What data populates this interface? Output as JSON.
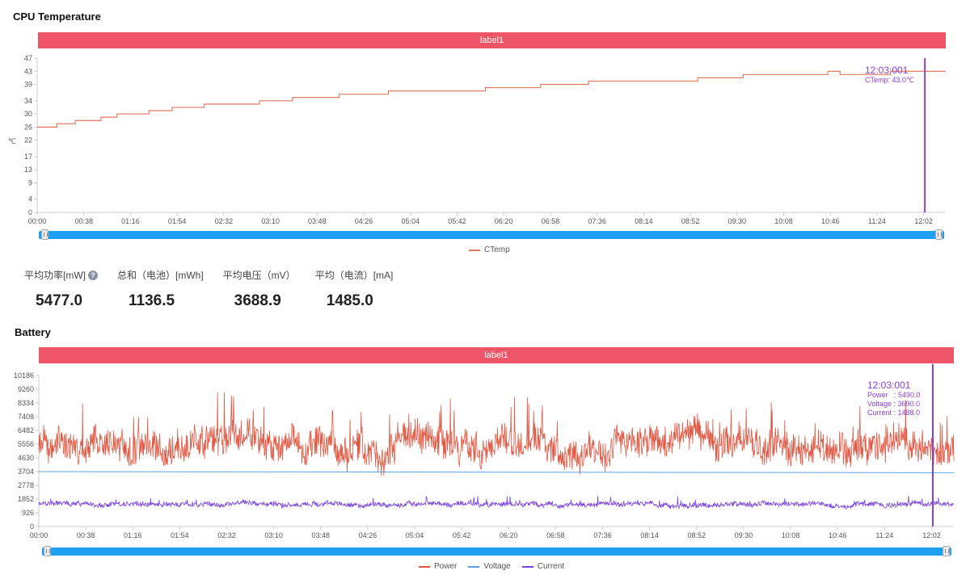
{
  "cpu_panel": {
    "title": "CPU Temperature",
    "banner": "label1",
    "tooltip": {
      "time": "12:03:001",
      "line1": "CTemp: 43.0℃"
    }
  },
  "stats": [
    {
      "label": "平均功率[mW]",
      "value": "5477.0",
      "help": "?"
    },
    {
      "label": "总和（电池）[mWh]",
      "value": "1136.5"
    },
    {
      "label": "平均电压（mV）",
      "value": "3688.9"
    },
    {
      "label": "平均（电流）[mA]",
      "value": "1485.0"
    }
  ],
  "battery_panel": {
    "title": "Battery",
    "banner": "label1",
    "tooltip": {
      "time": "12:03:001",
      "line1": "Power   : 5490.0",
      "line2": "Voltage : 3690.0",
      "line3": "Current : 1488.0"
    }
  },
  "colors": {
    "power": "#e05a45",
    "voltage": "#5aa0e0",
    "current": "#7a46e0",
    "cursor": "#8a3ed6",
    "banner": "#ee5667",
    "zoom": "#1da0f2"
  },
  "chart_data": [
    {
      "type": "line",
      "title": "CPU Temperature",
      "ylabel": "℃",
      "yticks": [
        0,
        4,
        9,
        13,
        17,
        22,
        26,
        30,
        34,
        39,
        43,
        47
      ],
      "ylim": [
        0,
        47
      ],
      "xticks": [
        "00:00",
        "00:38",
        "01:16",
        "01:54",
        "02:32",
        "03:10",
        "03:48",
        "04:26",
        "05:04",
        "05:42",
        "06:20",
        "06:58",
        "07:36",
        "08:14",
        "08:52",
        "09:30",
        "10:08",
        "10:46",
        "11:24",
        "12:02"
      ],
      "xlim_min": [
        0,
        740
      ],
      "cursor_min": 723,
      "legend": [
        "CTemp"
      ],
      "series": [
        {
          "name": "CTemp",
          "color": "#e07a60",
          "steps_min": [
            [
              0,
              26
            ],
            [
              16,
              27
            ],
            [
              31,
              28
            ],
            [
              52,
              29
            ],
            [
              65,
              30
            ],
            [
              91,
              31
            ],
            [
              110,
              32
            ],
            [
              136,
              33
            ],
            [
              181,
              34
            ],
            [
              208,
              35
            ],
            [
              246,
              36
            ],
            [
              286,
              37
            ],
            [
              365,
              38
            ],
            [
              410,
              39
            ],
            [
              449,
              40
            ],
            [
              538,
              41
            ],
            [
              575,
              42
            ],
            [
              644,
              43
            ],
            [
              654,
              42
            ],
            [
              695,
              43
            ],
            [
              740,
              43
            ]
          ]
        }
      ]
    },
    {
      "type": "line",
      "title": "Battery",
      "yticks": [
        0,
        926,
        1852,
        2778,
        3704,
        4630,
        5556,
        6482,
        7408,
        8334,
        9260,
        10186
      ],
      "ylim": [
        0,
        10186
      ],
      "xticks": [
        "00:00",
        "00:38",
        "01:16",
        "01:54",
        "02:32",
        "03:10",
        "03:48",
        "04:26",
        "05:04",
        "05:42",
        "06:20",
        "06:58",
        "07:36",
        "08:14",
        "08:52",
        "09:30",
        "10:08",
        "10:46",
        "11:24",
        "12:02"
      ],
      "xlim_min": [
        0,
        740
      ],
      "cursor_min": 723,
      "legend": [
        "Power",
        "Voltage",
        "Current"
      ],
      "series": [
        {
          "name": "Power",
          "color": "#e05a45",
          "mean": 5490,
          "amplitude": 1400,
          "min_peak": 3000,
          "max_peak": 9200
        },
        {
          "name": "Voltage",
          "color": "#5aa0e0",
          "start": 3705,
          "end": 3630
        },
        {
          "name": "Current",
          "color": "#7a46e0",
          "mean": 1488,
          "amplitude": 300,
          "max_peak": 2400
        }
      ]
    }
  ]
}
